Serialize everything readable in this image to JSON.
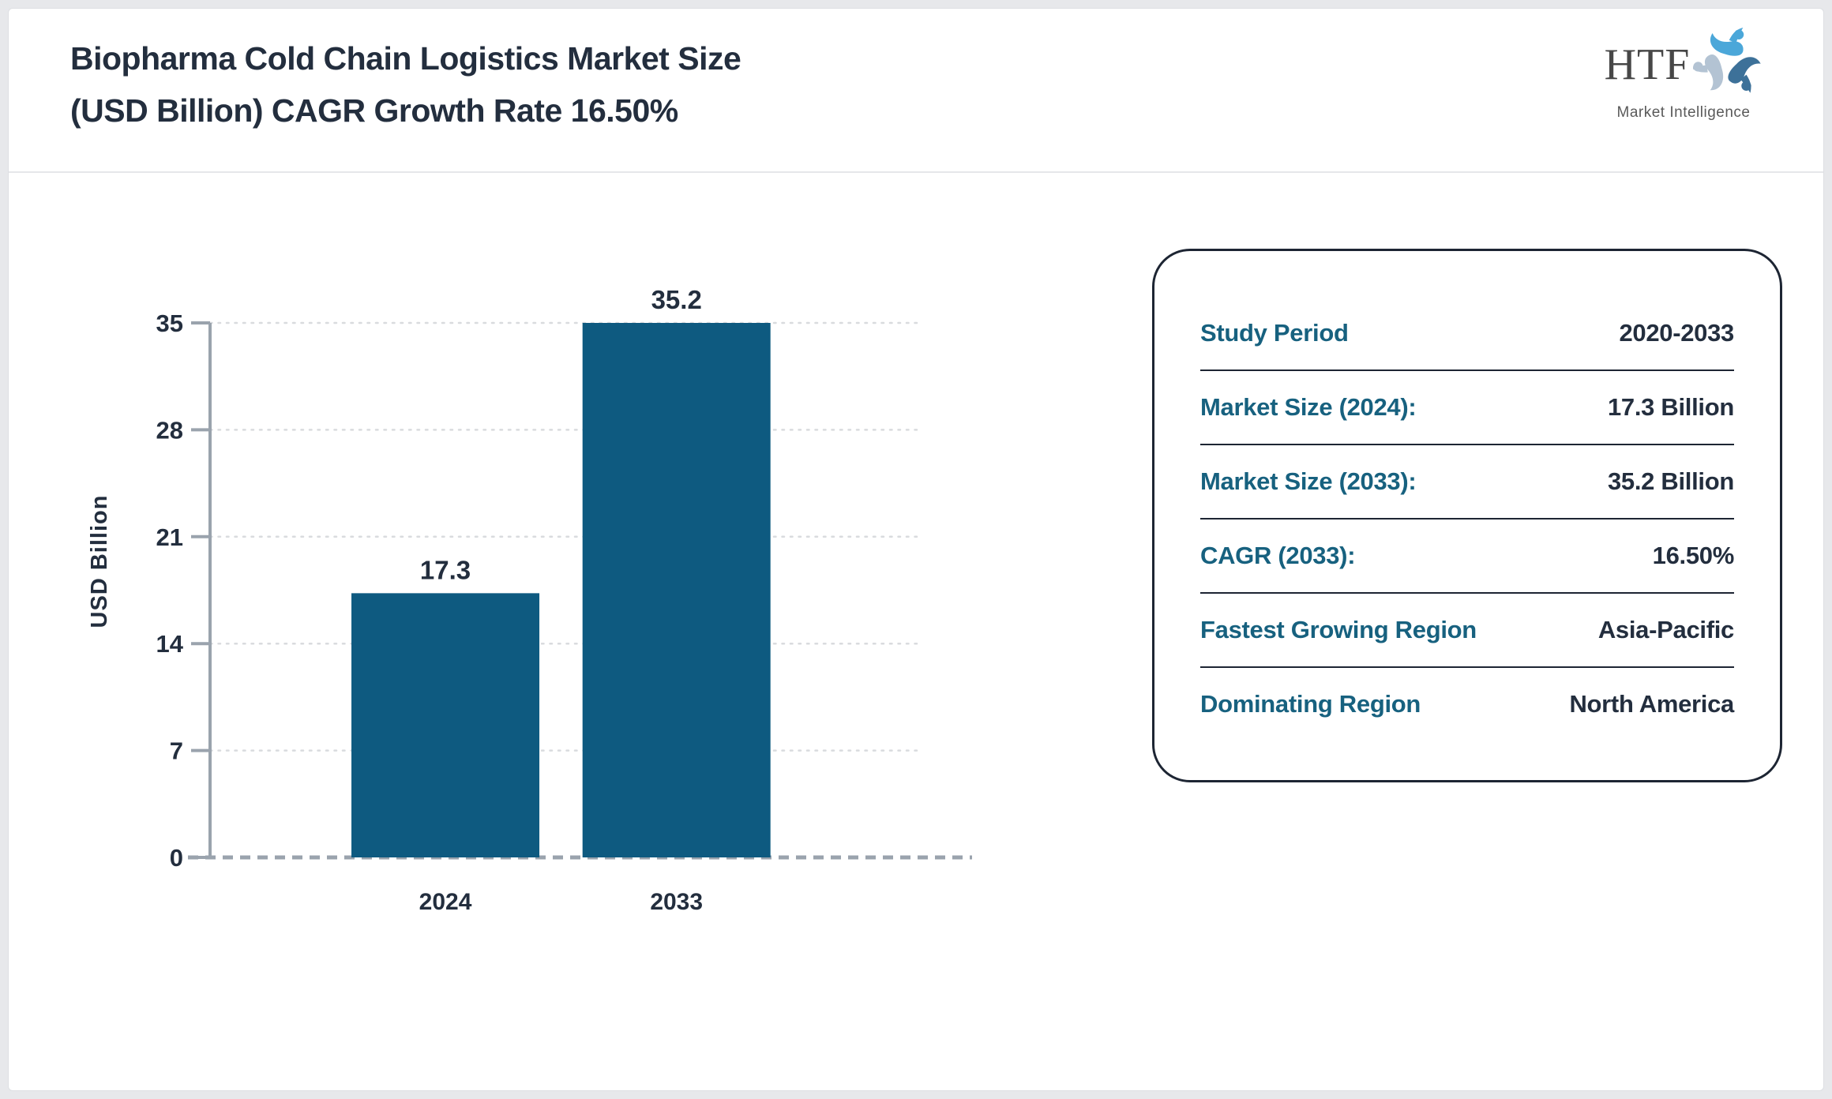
{
  "header": {
    "title_line1": "Biopharma Cold Chain Logistics Market Size",
    "title_line2": "(USD Billion) CAGR Growth Rate 16.50%",
    "logo": {
      "text": "HTF",
      "subtext": "Market Intelligence"
    }
  },
  "chart_data": {
    "type": "bar",
    "categories": [
      "2024",
      "2033"
    ],
    "values": [
      17.3,
      35.2
    ],
    "bar_value_labels": [
      "17.3",
      "35.2"
    ],
    "title": "",
    "xlabel": "",
    "ylabel": "USD Billion",
    "ylim": [
      0,
      35
    ],
    "yticks": [
      0,
      7,
      14,
      21,
      28,
      35
    ],
    "grid": "dotted horizontal gridlines",
    "legend": "none",
    "bar_color": "#0e5a80",
    "axis_color": "#9aa3ad",
    "grid_color": "#d9dbde",
    "text_color": "#232e3e"
  },
  "panel": {
    "rows": [
      {
        "label": "Study Period",
        "value": "2020-2033"
      },
      {
        "label": "Market Size (2024):",
        "value": "17.3 Billion"
      },
      {
        "label": "Market Size (2033):",
        "value": "35.2 Billion"
      },
      {
        "label": "CAGR (2033):",
        "value": "16.50%"
      },
      {
        "label": "Fastest Growing Region",
        "value": "Asia-Pacific"
      },
      {
        "label": "Dominating Region",
        "value": "North America"
      }
    ]
  },
  "colors": {
    "bar": "#0e5a80",
    "panel_label_teal": "#17617f",
    "dark_navy_text": "#232e3e",
    "logo_light_blue": "#4ba7d9",
    "logo_steel_blue": "#3d7199",
    "logo_pale_blue": "#b3c3d3"
  }
}
